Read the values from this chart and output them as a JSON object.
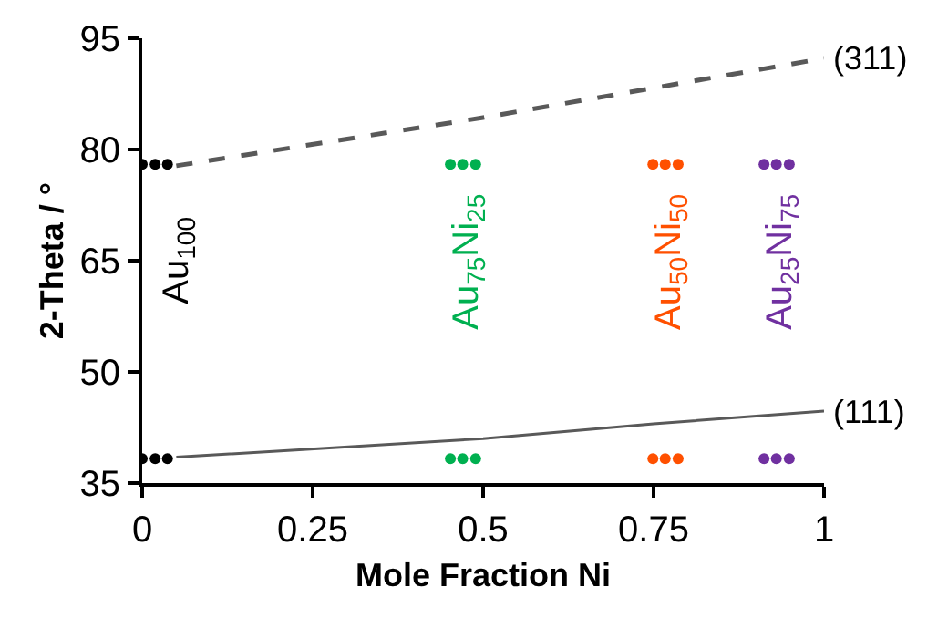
{
  "chart_data": {
    "type": "scatter",
    "xlabel": "Mole Fraction Ni",
    "ylabel": "2-Theta / °",
    "xlim": [
      0,
      1
    ],
    "xticks": [
      0,
      0.25,
      0.5,
      0.75,
      1
    ],
    "ylim": [
      35,
      95
    ],
    "yticks": [
      35,
      50,
      65,
      80,
      95
    ],
    "series": [
      {
        "type": "line",
        "color": "#595959",
        "line_style": "dashed",
        "marker": "none",
        "x": [
          0.05,
          0.5,
          1
        ],
        "values": [
          77.8,
          84.3,
          92.3
        ]
      },
      {
        "type": "line",
        "color": "#595959",
        "line_style": "solid",
        "marker": "none",
        "x": [
          0.05,
          0.5,
          0.75,
          1
        ],
        "values": [
          38.5,
          41,
          43,
          44.7
        ]
      },
      {
        "color": "#000000",
        "marker": "circle",
        "x": [
          0,
          0.019,
          0.037,
          0,
          0.019,
          0.037
        ],
        "values": [
          78,
          78,
          78,
          38.3,
          38.3,
          38.3
        ]
      },
      {
        "color": "#00b050",
        "marker": "circle",
        "x": [
          0.452,
          0.47,
          0.489,
          0.452,
          0.47,
          0.489
        ],
        "values": [
          78,
          78,
          78,
          38.3,
          38.3,
          38.3
        ]
      },
      {
        "color": "#ff5000",
        "marker": "circle",
        "x": [
          0.749,
          0.767,
          0.786,
          0.749,
          0.767,
          0.786
        ],
        "values": [
          78,
          78,
          78,
          38.3,
          38.3,
          38.3
        ]
      },
      {
        "color": "#7030a0",
        "marker": "circle",
        "x": [
          0.912,
          0.93,
          0.949,
          0.912,
          0.93,
          0.949
        ],
        "values": [
          78,
          78,
          78,
          38.3,
          38.3,
          38.3
        ]
      }
    ],
    "annotations": [
      {
        "text": "(311)",
        "x": 1,
        "y": 92.3
      },
      {
        "text": "(111)",
        "x": 1,
        "y": 44.7
      },
      "Au$_{100}$",
      "Au$_{75}$Ni$_{25}$",
      "Au$_{50}$Ni$_{50}$",
      "Au$_{25}$Ni$_{75}$"
    ]
  }
}
